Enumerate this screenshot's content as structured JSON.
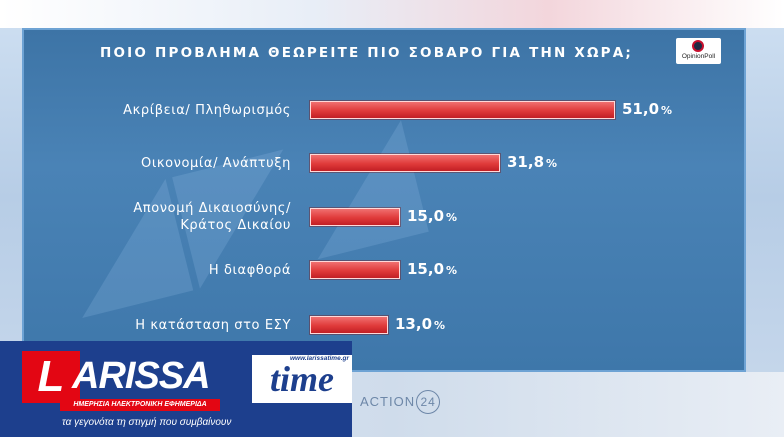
{
  "chart_data": {
    "type": "bar",
    "orientation": "horizontal",
    "title": "ΠΟΙΟ ΠΡΟΒΛΗΜΑ ΘΕΩΡΕΙΤΕ ΠΙΟ ΣΟΒΑΡΟ ΓΙΑ ΤΗΝ ΧΩΡΑ;",
    "categories": [
      "Ακρίβεια/ Πληθωρισμός",
      "Οικονομία/ Ανάπτυξη",
      "Απονομή Δικαιοσύνης/\nΚράτος Δικαίου",
      "Η διαφθορά",
      "Η κατάσταση στο ΕΣΥ"
    ],
    "values": [
      51.0,
      31.8,
      15.0,
      15.0,
      13.0
    ],
    "value_labels": [
      "51,0",
      "31,8",
      "15,0",
      "15,0",
      "13,0"
    ],
    "unit": "%",
    "xlim": [
      0,
      51
    ],
    "bar_color": "#e03a3a"
  },
  "poll_logo": {
    "text": "OpinionPoll"
  },
  "footer": {
    "brand_name": "ARISSA",
    "brand_initial": "L",
    "brand_time": "time",
    "brand_url": "www.larissatime.gr",
    "subtitle": "ΗΜΕΡΗΣΙΑ ΗΛΕΚΤΡΟΝΙΚΗ ΕΦΗΜΕΡΙΔΑ",
    "tagline": "τα γεγονότα τη στιγμή που συμβαίνουν",
    "channel": "ACTION",
    "channel_number": "24"
  }
}
